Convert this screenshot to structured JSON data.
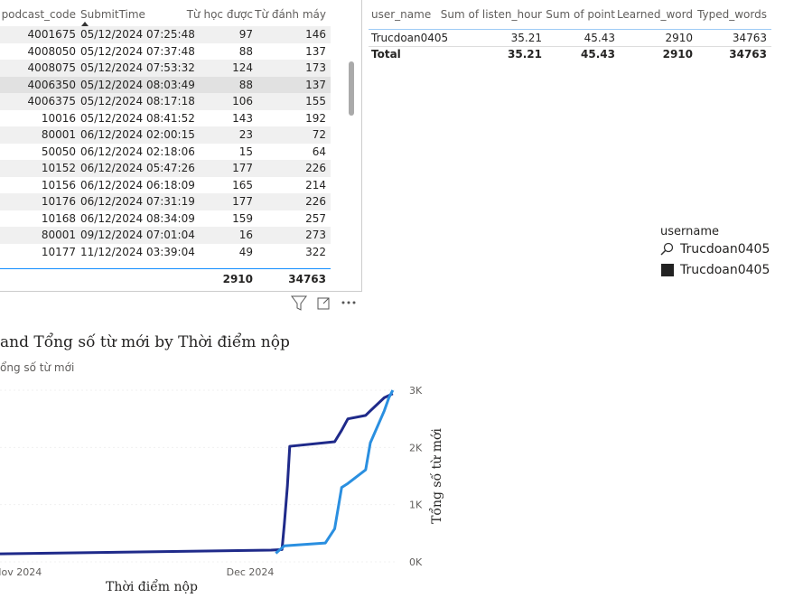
{
  "detail_table": {
    "columns": [
      "podcast_code",
      "SubmitTime",
      "Từ học được",
      "Từ đánh máy"
    ],
    "rows": [
      [
        "4001675",
        "05/12/2024 07:25:48",
        97,
        146
      ],
      [
        "4008050",
        "05/12/2024 07:37:48",
        88,
        137
      ],
      [
        "4008075",
        "05/12/2024 07:53:32",
        124,
        173
      ],
      [
        "4006350",
        "05/12/2024 08:03:49",
        88,
        137
      ],
      [
        "4006375",
        "05/12/2024 08:17:18",
        106,
        155
      ],
      [
        "10016",
        "05/12/2024 08:41:52",
        143,
        192
      ],
      [
        "80001",
        "06/12/2024 02:00:15",
        23,
        72
      ],
      [
        "50050",
        "06/12/2024 02:18:06",
        15,
        64
      ],
      [
        "10152",
        "06/12/2024 05:47:26",
        177,
        226
      ],
      [
        "10156",
        "06/12/2024 06:18:09",
        165,
        214
      ],
      [
        "10176",
        "06/12/2024 07:31:19",
        177,
        226
      ],
      [
        "10168",
        "06/12/2024 08:34:09",
        159,
        257
      ],
      [
        "80001",
        "09/12/2024 07:01:04",
        16,
        273
      ],
      [
        "10177",
        "11/12/2024 03:39:04",
        49,
        322
      ]
    ],
    "total": [
      2910,
      34763
    ]
  },
  "summary_table": {
    "columns": [
      "user_name",
      "Sum of listen_hour",
      "Sum of point",
      "Learned_word",
      "Typed_words"
    ],
    "rows": [
      [
        "Trucdoan0405",
        35.21,
        45.43,
        2910,
        34763
      ]
    ],
    "total": [
      "Total",
      35.21,
      45.43,
      2910,
      34763
    ]
  },
  "slicer": {
    "title": "username",
    "search": "Trucdoan0405",
    "items": [
      "Trucdoan0405"
    ]
  },
  "chart_data": {
    "type": "line",
    "title": "and Tổng số từ mới by Thời điểm nộp",
    "subtitle": "ổng số từ mới",
    "x_label": "Thời điểm nộp",
    "y_label": "Tổng số từ mới",
    "xlim": [
      -2.3,
      49
    ],
    "xticks": [
      {
        "value": 0,
        "label": "Nov 2024"
      },
      {
        "value": 30,
        "label": "Dec 2024"
      }
    ],
    "ylim": [
      0,
      3000
    ],
    "yticks": [
      {
        "value": 0,
        "label": "0K"
      },
      {
        "value": 1000,
        "label": "1K"
      },
      {
        "value": 2000,
        "label": "2K"
      },
      {
        "value": 3000,
        "label": "3K"
      }
    ],
    "grid": true,
    "series": [
      {
        "color": "#1f2a8a",
        "x": [
          -2.3,
          32.7,
          34.1,
          34.4,
          34.8,
          35.1,
          40.9,
          41.8,
          42.6,
          44.9,
          45.5,
          47.3,
          48.4
        ],
        "values": [
          140,
          205,
          215,
          660,
          1330,
          2020,
          2100,
          2300,
          2500,
          2560,
          2640,
          2870,
          2940
        ]
      },
      {
        "color": "#2a8fe0",
        "x": [
          33.3,
          34.4,
          39.7,
          40.9,
          41.8,
          42.6,
          44.9,
          45.5,
          47.3,
          47.9,
          48.4
        ],
        "values": [
          150,
          280,
          330,
          580,
          1300,
          1370,
          1610,
          2080,
          2640,
          2870,
          3000
        ]
      }
    ]
  }
}
